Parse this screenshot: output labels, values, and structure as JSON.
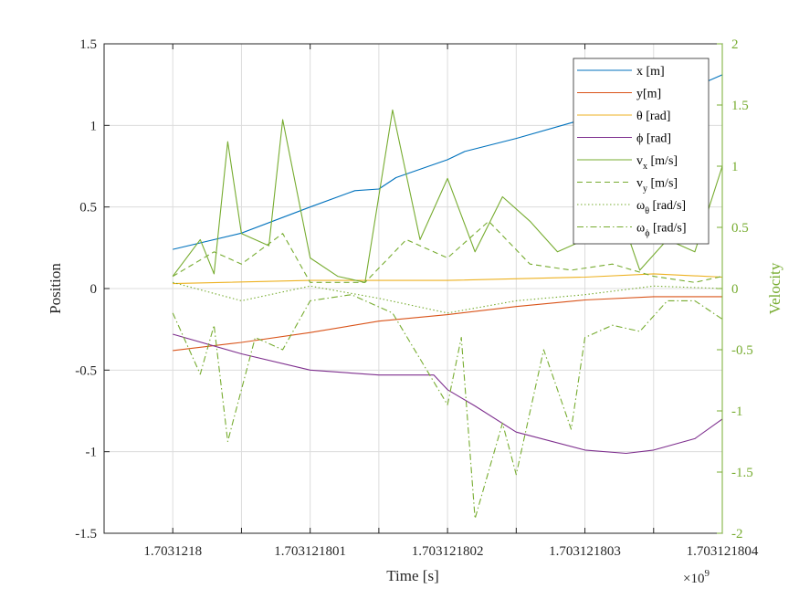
{
  "chart_data": {
    "type": "line",
    "xlabel": "Time [s]",
    "x_exponent_label": "×10",
    "x_exponent_power": "9",
    "ylabel_left": "Position",
    "ylabel_right": "Velocity",
    "xlim": [
      1.7031217995,
      1.703121804
    ],
    "ylim_left": [
      -1.5,
      1.5
    ],
    "ylim_right": [
      -2,
      2
    ],
    "grid": true,
    "legend_position": "top-right",
    "colors": {
      "x": "#0072BD",
      "y": "#D95319",
      "theta": "#EDB120",
      "phi": "#7E2F8E",
      "velocity": "#77AC30",
      "right_axis": "#77AC30",
      "axis": "#262626",
      "grid": "#dcdcdc"
    },
    "x_ticks": [
      {
        "value": 1.7031218,
        "label": "1.7031218"
      },
      {
        "value": 1.703121801,
        "label": "1.703121801"
      },
      {
        "value": 1.703121802,
        "label": "1.703121802"
      },
      {
        "value": 1.703121803,
        "label": "1.703121803"
      },
      {
        "value": 1.703121804,
        "label": "1.703121804"
      }
    ],
    "y_left_ticks": [
      {
        "value": 1.5,
        "label": "1.5"
      },
      {
        "value": 1,
        "label": "1"
      },
      {
        "value": 0.5,
        "label": "0.5"
      },
      {
        "value": 0,
        "label": "0"
      },
      {
        "value": -0.5,
        "label": "-0.5"
      },
      {
        "value": -1,
        "label": "-1"
      },
      {
        "value": -1.5,
        "label": "-1.5"
      }
    ],
    "y_right_ticks": [
      {
        "value": 2,
        "label": "2"
      },
      {
        "value": 1.5,
        "label": "1.5"
      },
      {
        "value": 1,
        "label": "1"
      },
      {
        "value": 0.5,
        "label": "0.5"
      },
      {
        "value": 0,
        "label": "0"
      },
      {
        "value": -0.5,
        "label": "-0.5"
      },
      {
        "value": -1,
        "label": "-1"
      },
      {
        "value": -1.5,
        "label": "-1.5"
      },
      {
        "value": -2,
        "label": "-2"
      }
    ],
    "legend": [
      {
        "key": "x",
        "main": "x [m]",
        "sub": "",
        "tail": "",
        "dash": ""
      },
      {
        "key": "y",
        "main": "y[m]",
        "sub": "",
        "tail": "",
        "dash": ""
      },
      {
        "key": "theta",
        "main": "θ [rad]",
        "sub": "",
        "tail": "",
        "dash": ""
      },
      {
        "key": "phi",
        "main": "ϕ [rad]",
        "sub": "",
        "tail": "",
        "dash": ""
      },
      {
        "key": "vx",
        "main": "v",
        "sub": "x",
        "tail": " [m/s]",
        "dash": ""
      },
      {
        "key": "vy",
        "main": "v",
        "sub": "y",
        "tail": " [m/s]",
        "dash": "6,4"
      },
      {
        "key": "wtheta",
        "main": "ω",
        "sub": "θ",
        "tail": " [rad/s]",
        "dash": "1.5,2.5"
      },
      {
        "key": "wphi",
        "main": "ω",
        "sub": "ϕ",
        "tail": " [rad/s]",
        "dash": "7,3,1.5,3"
      }
    ],
    "series": [
      {
        "name": "x [m]",
        "key": "x",
        "axis": "left",
        "x": [
          1.7031218,
          1.7031218005,
          1.703121801,
          1.703121801325,
          1.7031218015,
          1.703121801625,
          1.703121802,
          1.703121802125,
          1.7031218025,
          1.703121803,
          1.7031218033,
          1.7031218035,
          1.7031218037,
          1.703121804
        ],
        "y": [
          0.24,
          0.34,
          0.5,
          0.6,
          0.61,
          0.68,
          0.79,
          0.84,
          0.92,
          1.04,
          1.05,
          1.15,
          1.2,
          1.31
        ]
      },
      {
        "name": "y[m]",
        "key": "y",
        "axis": "left",
        "x": [
          1.7031218,
          1.7031218005,
          1.703121801,
          1.7031218015,
          1.703121802,
          1.7031218025,
          1.703121803,
          1.7031218035,
          1.703121804
        ],
        "y": [
          -0.38,
          -0.33,
          -0.27,
          -0.2,
          -0.16,
          -0.11,
          -0.07,
          -0.05,
          -0.05
        ]
      },
      {
        "name": "θ [rad]",
        "key": "theta",
        "axis": "left",
        "x": [
          1.7031218,
          1.703121801,
          1.703121802,
          1.703121803,
          1.7031218035,
          1.703121804
        ],
        "y": [
          0.03,
          0.05,
          0.05,
          0.07,
          0.09,
          0.07
        ]
      },
      {
        "name": "ϕ [rad]",
        "key": "phi",
        "axis": "left",
        "x": [
          1.7031218,
          1.7031218005,
          1.703121801,
          1.7031218015,
          1.7031218019,
          1.703121802,
          1.7031218022,
          1.7031218025,
          1.703121803,
          1.7031218033,
          1.7031218035,
          1.7031218038,
          1.703121804
        ],
        "y": [
          -0.28,
          -0.4,
          -0.5,
          -0.53,
          -0.53,
          -0.62,
          -0.72,
          -0.88,
          -0.99,
          -1.01,
          -0.99,
          -0.92,
          -0.8
        ]
      },
      {
        "name": "v [m/s]",
        "key": "vx",
        "axis": "right",
        "x": [
          1.7031218,
          1.7031218002,
          1.7031218003,
          1.7031218004,
          1.7031218005,
          1.7031218007,
          1.7031218008,
          1.703121801,
          1.7031218012,
          1.7031218014,
          1.7031218016,
          1.7031218018,
          1.703121802,
          1.7031218022,
          1.7031218024,
          1.7031218026,
          1.7031218028,
          1.703121803,
          1.7031218032,
          1.7031218034,
          1.7031218036,
          1.7031218038,
          1.703121804
        ],
        "y": [
          0.1,
          0.4,
          0.12,
          1.2,
          0.45,
          0.35,
          1.38,
          0.25,
          0.1,
          0.05,
          1.46,
          0.4,
          0.9,
          0.3,
          0.75,
          0.55,
          0.3,
          0.4,
          0.8,
          0.15,
          0.4,
          0.3,
          1.0
        ]
      },
      {
        "name": "v [m/s]",
        "key": "vy",
        "axis": "right",
        "x": [
          1.7031218,
          1.7031218003,
          1.7031218005,
          1.7031218008,
          1.703121801,
          1.7031218014,
          1.7031218017,
          1.703121802,
          1.7031218023,
          1.7031218026,
          1.7031218029,
          1.7031218032,
          1.7031218035,
          1.7031218038,
          1.703121804
        ],
        "y": [
          0.1,
          0.3,
          0.2,
          0.45,
          0.05,
          0.05,
          0.4,
          0.25,
          0.55,
          0.2,
          0.15,
          0.2,
          0.1,
          0.05,
          0.1
        ]
      },
      {
        "name": "ω [rad/s]",
        "key": "wtheta",
        "axis": "right",
        "x": [
          1.7031218,
          1.7031218005,
          1.703121801,
          1.7031218015,
          1.703121802,
          1.7031218025,
          1.703121803,
          1.7031218035,
          1.703121804
        ],
        "y": [
          0.05,
          -0.1,
          0.02,
          -0.08,
          -0.2,
          -0.1,
          -0.05,
          0.02,
          0.0
        ]
      },
      {
        "name": "ω [rad/s]",
        "key": "wphi",
        "axis": "right",
        "x": [
          1.7031218,
          1.7031218002,
          1.7031218003,
          1.7031218004,
          1.7031218006,
          1.7031218008,
          1.703121801,
          1.7031218013,
          1.7031218016,
          1.703121802,
          1.7031218021,
          1.7031218022,
          1.7031218024,
          1.7031218025,
          1.7031218027,
          1.7031218029,
          1.703121803,
          1.7031218032,
          1.7031218034,
          1.7031218036,
          1.7031218038,
          1.703121804
        ],
        "y": [
          -0.2,
          -0.7,
          -0.3,
          -1.25,
          -0.4,
          -0.5,
          -0.1,
          -0.05,
          -0.2,
          -0.95,
          -0.4,
          -1.88,
          -1.1,
          -1.52,
          -0.5,
          -1.15,
          -0.4,
          -0.3,
          -0.35,
          -0.1,
          -0.1,
          -0.25
        ]
      }
    ]
  }
}
